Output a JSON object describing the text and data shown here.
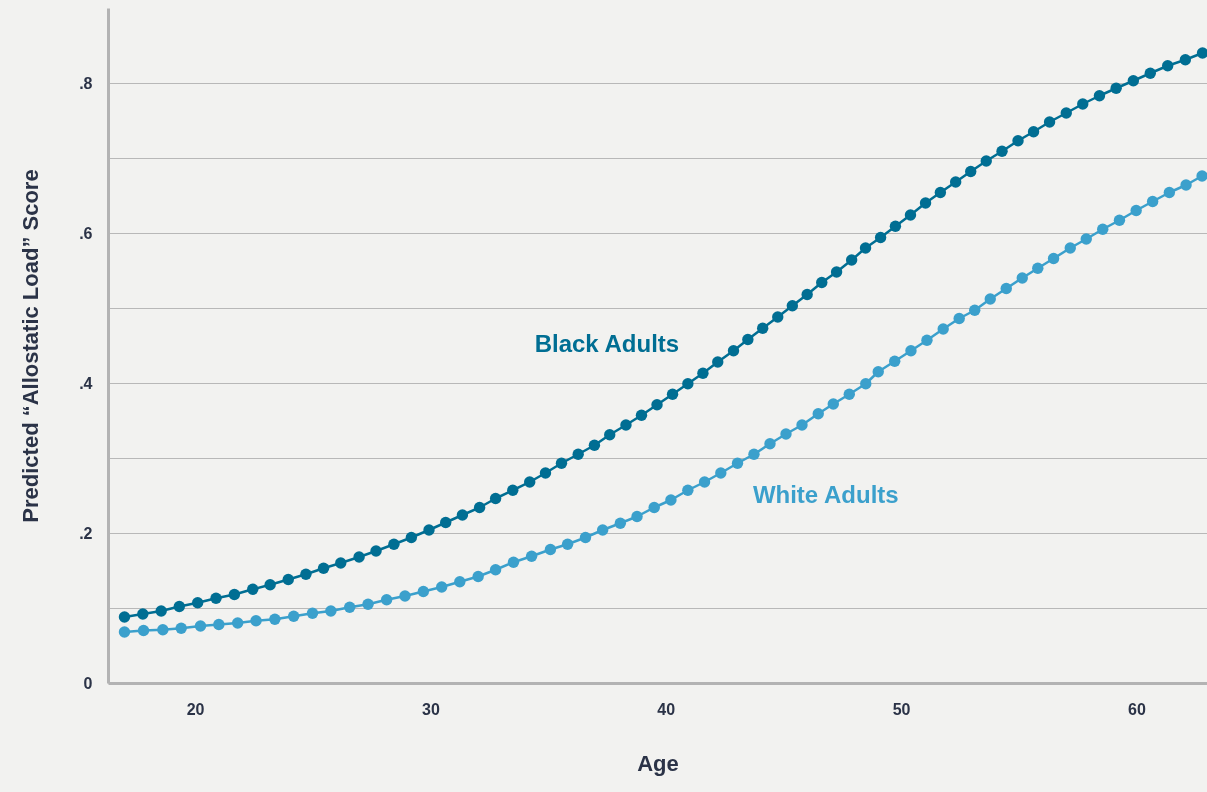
{
  "chart_data": {
    "type": "line",
    "xlabel": "Age",
    "ylabel": "Predicted “Allostatic Load” Score",
    "xlim": [
      16.3,
      63
    ],
    "xticks": [
      20,
      30,
      40,
      50,
      60
    ],
    "ylim": [
      0,
      0.9
    ],
    "yticks": [
      0,
      {
        "value": 0.1,
        "label": null
      },
      {
        "value": 0.2,
        "label": ".2"
      },
      {
        "value": 0.3,
        "label": null
      },
      {
        "value": 0.4,
        "label": ".4"
      },
      {
        "value": 0.5,
        "label": null
      },
      {
        "value": 0.6,
        "label": ".6"
      },
      {
        "value": 0.7,
        "label": null
      },
      {
        "value": 0.8,
        "label": ".8"
      }
    ],
    "grid": "y",
    "marker": "circle",
    "legend": false,
    "series": [
      {
        "name": "Black Adults",
        "color": "#006e93",
        "x": [
          17.0,
          17.78,
          18.56,
          19.33,
          20.11,
          20.89,
          21.67,
          22.45,
          23.19,
          23.96,
          24.71,
          25.46,
          26.19,
          26.97,
          27.69,
          28.45,
          29.19,
          29.94,
          30.65,
          31.36,
          32.09,
          32.77,
          33.5,
          34.22,
          34.89,
          35.57,
          36.28,
          36.97,
          37.62,
          38.31,
          38.97,
          39.63,
          40.29,
          40.94,
          41.58,
          42.21,
          42.88,
          43.49,
          44.12,
          44.76,
          45.38,
          46.01,
          46.63,
          47.26,
          47.9,
          48.49,
          49.13,
          49.76,
          50.4,
          51.04,
          51.67,
          52.32,
          52.96,
          53.62,
          54.29,
          54.97,
          55.63,
          56.31,
          57.02,
          57.72,
          58.43,
          59.14,
          59.87,
          60.59,
          61.33,
          62.08,
          62.81
        ],
        "values": [
          0.088,
          0.092,
          0.096,
          0.102,
          0.107,
          0.113,
          0.118,
          0.125,
          0.131,
          0.138,
          0.145,
          0.153,
          0.16,
          0.168,
          0.176,
          0.185,
          0.194,
          0.204,
          0.214,
          0.224,
          0.234,
          0.246,
          0.257,
          0.268,
          0.28,
          0.293,
          0.305,
          0.317,
          0.331,
          0.344,
          0.357,
          0.371,
          0.385,
          0.399,
          0.413,
          0.428,
          0.443,
          0.458,
          0.473,
          0.488,
          0.503,
          0.518,
          0.534,
          0.548,
          0.564,
          0.58,
          0.594,
          0.609,
          0.624,
          0.64,
          0.654,
          0.668,
          0.682,
          0.696,
          0.709,
          0.723,
          0.735,
          0.748,
          0.76,
          0.772,
          0.783,
          0.793,
          0.803,
          0.813,
          0.823,
          0.831,
          0.84
        ]
      },
      {
        "name": "White Adults",
        "color": "#3ba0cc",
        "x": [
          17.0,
          17.81,
          18.63,
          19.41,
          20.23,
          21.01,
          21.81,
          22.59,
          23.39,
          24.19,
          24.99,
          25.77,
          26.57,
          27.35,
          28.14,
          28.92,
          29.7,
          30.48,
          31.25,
          32.03,
          32.77,
          33.53,
          34.3,
          35.1,
          35.83,
          36.59,
          37.32,
          38.07,
          38.78,
          39.51,
          40.22,
          40.94,
          41.65,
          42.34,
          43.05,
          43.75,
          44.43,
          45.11,
          45.79,
          46.48,
          47.12,
          47.8,
          48.5,
          49.03,
          49.73,
          50.42,
          51.1,
          51.79,
          52.47,
          53.13,
          53.79,
          54.47,
          55.15,
          55.81,
          56.48,
          57.19,
          57.87,
          58.57,
          59.28,
          59.99,
          60.69,
          61.4,
          62.11,
          62.79
        ],
        "values": [
          0.068,
          0.07,
          0.071,
          0.073,
          0.076,
          0.078,
          0.08,
          0.083,
          0.085,
          0.089,
          0.093,
          0.096,
          0.101,
          0.105,
          0.111,
          0.116,
          0.122,
          0.128,
          0.135,
          0.142,
          0.151,
          0.161,
          0.169,
          0.178,
          0.185,
          0.194,
          0.204,
          0.213,
          0.222,
          0.234,
          0.244,
          0.257,
          0.268,
          0.28,
          0.293,
          0.305,
          0.319,
          0.332,
          0.344,
          0.359,
          0.372,
          0.385,
          0.399,
          0.415,
          0.429,
          0.443,
          0.457,
          0.472,
          0.486,
          0.497,
          0.512,
          0.526,
          0.54,
          0.553,
          0.566,
          0.58,
          0.592,
          0.605,
          0.617,
          0.63,
          0.642,
          0.654,
          0.664,
          0.676
        ]
      }
    ]
  }
}
